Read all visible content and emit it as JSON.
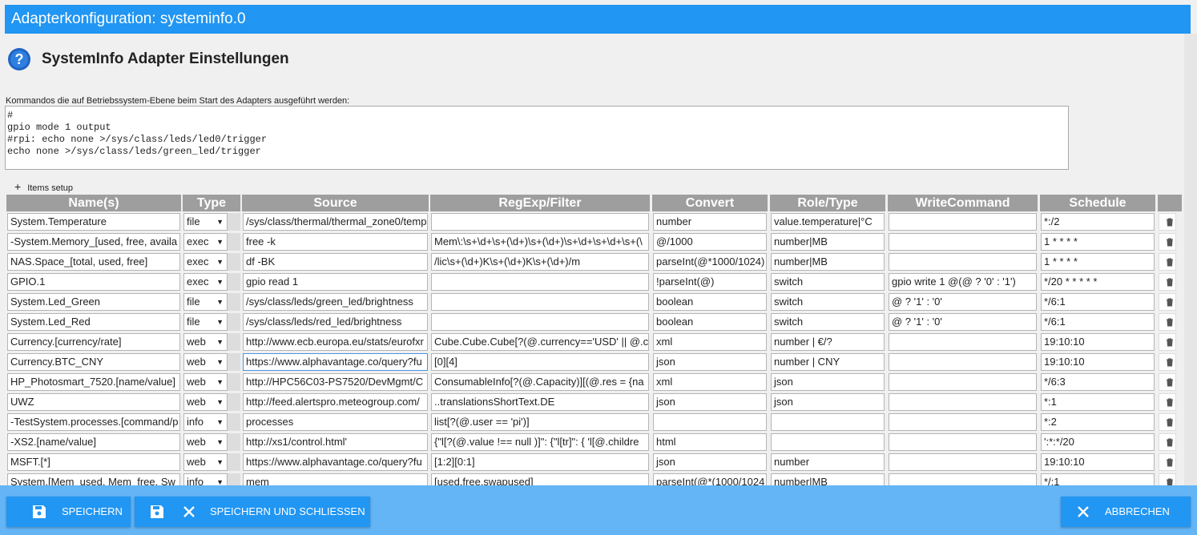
{
  "header": {
    "title": "Adapterkonfiguration: systeminfo.0"
  },
  "heading": "SystemInfo Adapter Einstellungen",
  "commands": {
    "label": "Kommandos die auf Betriebssystem-Ebene beim Start des Adapters ausgeführt werden:",
    "lines": [
      "#",
      "gpio mode 1 output",
      "#rpi: echo none >/sys/class/leds/led0/trigger",
      "echo none >/sys/class/leds/green_led/trigger"
    ]
  },
  "items_setup": "Items setup",
  "table": {
    "columns": [
      "Name(s)",
      "Type",
      "Source",
      "RegExp/Filter",
      "Convert",
      "Role/Type",
      "WriteCommand",
      "Schedule"
    ],
    "rows": [
      [
        "System.Temperature",
        "file",
        "/sys/class/thermal/thermal_zone0/temp",
        null,
        "number",
        "value.temperature|°C",
        null,
        "*:/2"
      ],
      [
        "-System.Memory_[used, free, availa",
        "exec",
        "free -k",
        "Mem\\:\\s+\\d+\\s+(\\d+)\\s+(\\d+)\\s+\\d+\\s+\\d+\\s+(\\",
        "@/1000",
        "number|MB",
        null,
        "1 * * * *"
      ],
      [
        "NAS.Space_[total, used, free]",
        "exec",
        "df -BK",
        "/lic\\s+(\\d+)K\\s+(\\d+)K\\s+(\\d+)/m",
        "parseInt(@*1000/1024)",
        "number|MB",
        null,
        "1 * * * *"
      ],
      [
        "GPIO.1",
        "exec",
        "gpio read 1",
        null,
        "!parseInt(@)",
        "switch",
        "gpio write 1 @(@ ?  '0' : '1')",
        "*/20 * * * * *"
      ],
      [
        "System.Led_Green",
        "file",
        "/sys/class/leds/green_led/brightness",
        null,
        "boolean",
        "switch",
        "@ ? '1' : '0'",
        "*/6:1"
      ],
      [
        "System.Led_Red",
        "file",
        "/sys/class/leds/red_led/brightness",
        null,
        "boolean",
        "switch",
        "@ ? '1' : '0'",
        "*/6:1"
      ],
      [
        "Currency.[currency/rate]",
        "web",
        "http://www.ecb.europa.eu/stats/eurofxr",
        "Cube.Cube.Cube[?(@.currency=='USD' || @.c",
        "xml",
        "number | €/?",
        null,
        "19:10:10"
      ],
      [
        "Currency.BTC_CNY",
        "web",
        "https://www.alphavantage.co/query?fu",
        "[0][4]",
        "json",
        "number | CNY",
        null,
        "19:10:10"
      ],
      [
        "HP_Photosmart_7520.[name/value]",
        "web",
        "http://HPC56C03-PS7520/DevMgmt/C",
        "ConsumableInfo[?(@.Capacity)][(@.res = {na",
        "xml",
        "json",
        null,
        "*/6:3"
      ],
      [
        "UWZ",
        "web",
        "http://feed.alertspro.meteogroup.com/",
        "..translationsShortText.DE",
        "json",
        "json",
        null,
        "*:1"
      ],
      [
        "-TestSystem.processes.[command/p",
        "info",
        "processes",
        "list[?(@.user == 'pi')]",
        null,
        null,
        null,
        "*:2"
      ],
      [
        "-XS2.[name/value]",
        "web",
        "http://xs1/control.html'",
        "{\"l[?(@.value  !== null )]\": {\"l[tr]\": { 'l[@.childre",
        "html",
        null,
        null,
        "':*:*/20"
      ],
      [
        "MSFT.[*]",
        "web",
        "https://www.alphavantage.co/query?fu",
        "[1:2][0:1]",
        "json",
        "number",
        null,
        "19:10:10"
      ],
      [
        "System.[Mem_used, Mem_free, Sw",
        "info",
        "mem",
        "[used,free,swapused]",
        "parseInt(@*(1000/1024",
        "number|MB",
        null,
        "*/:1"
      ]
    ]
  },
  "buttons": {
    "save": "SPEICHERN",
    "save_close": "SPEICHERN UND SCHLIESSEN",
    "cancel": "ABBRECHEN"
  }
}
